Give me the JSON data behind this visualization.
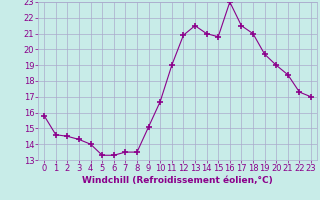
{
  "x": [
    0,
    1,
    2,
    3,
    4,
    5,
    6,
    7,
    8,
    9,
    10,
    11,
    12,
    13,
    14,
    15,
    16,
    17,
    18,
    19,
    20,
    21,
    22,
    23
  ],
  "y": [
    15.8,
    14.6,
    14.5,
    14.3,
    14.0,
    13.3,
    13.3,
    13.5,
    13.5,
    15.1,
    16.7,
    19.0,
    20.9,
    21.5,
    21.0,
    20.8,
    23.0,
    21.5,
    21.0,
    19.7,
    19.0,
    18.4,
    17.3,
    17.0
  ],
  "line_color": "#8B008B",
  "marker": "+",
  "marker_size": 4,
  "marker_linewidth": 1.2,
  "bg_color": "#c8ece8",
  "grid_color": "#aaaacc",
  "xlabel": "Windchill (Refroidissement éolien,°C)",
  "xlabel_fontsize": 6.5,
  "xlabel_color": "#8B008B",
  "ylim": [
    13,
    23
  ],
  "yticks": [
    13,
    14,
    15,
    16,
    17,
    18,
    19,
    20,
    21,
    22,
    23
  ],
  "xticks": [
    0,
    1,
    2,
    3,
    4,
    5,
    6,
    7,
    8,
    9,
    10,
    11,
    12,
    13,
    14,
    15,
    16,
    17,
    18,
    19,
    20,
    21,
    22,
    23
  ],
  "tick_fontsize": 6,
  "tick_color": "#8B008B",
  "line_width": 0.8
}
